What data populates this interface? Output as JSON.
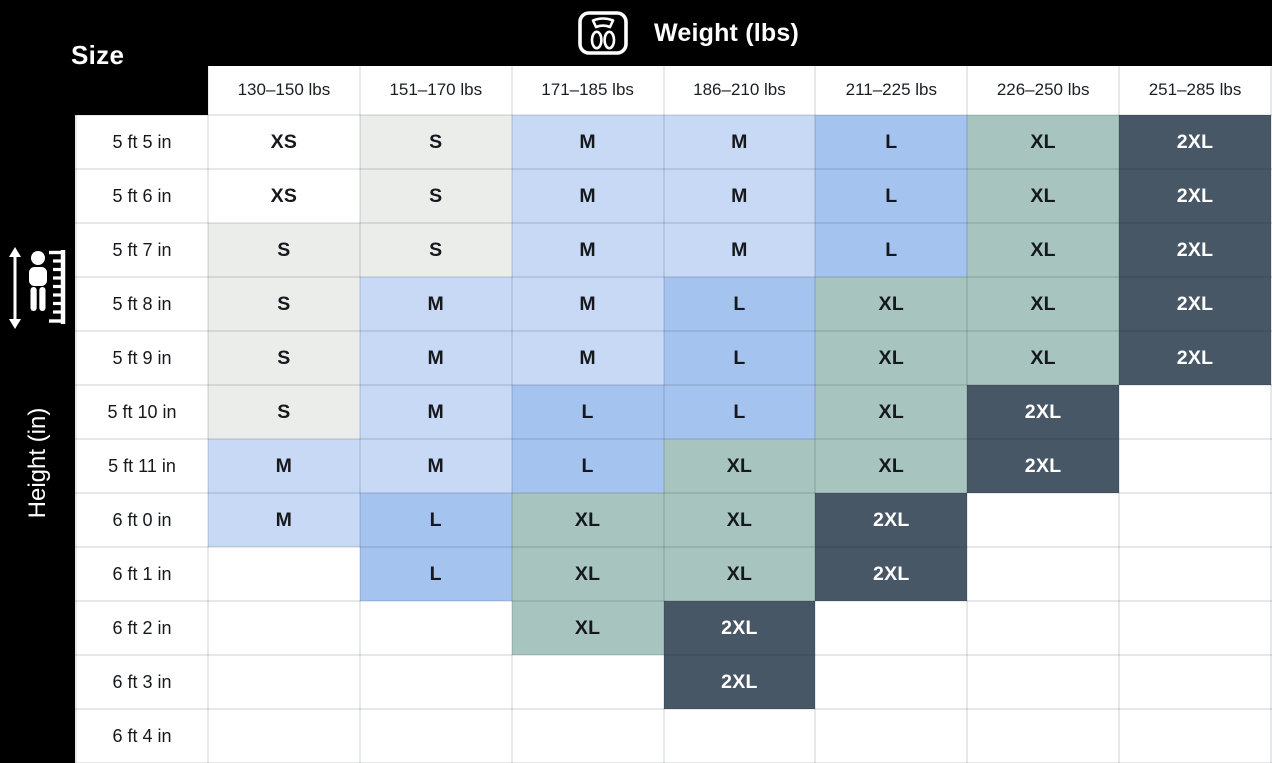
{
  "weight_header": {
    "icon": "scale-icon",
    "title": "Weight (lbs)"
  },
  "size_corner": {
    "label": "Size"
  },
  "height_header": {
    "icon": "height-measure-icon",
    "label": "Height (in)"
  },
  "colors": {
    "header_bg": "#000000",
    "sidebar_bg": "#000000",
    "header_text": "#ffffff",
    "table_text": "#15181d",
    "border": "rgba(20,25,35,0.10)",
    "size_fills": {
      "XS": {
        "bg": "#ffffff",
        "text": "#15181d"
      },
      "S": {
        "bg": "#ebedeb",
        "text": "#15181d"
      },
      "M": {
        "bg": "#c7d9f4",
        "text": "#15181d"
      },
      "L": {
        "bg": "#a5c3ef",
        "text": "#15181d"
      },
      "XL": {
        "bg": "#a7c4be",
        "text": "#15181d"
      },
      "2XL": {
        "bg": "#485766",
        "text": "#ffffff"
      }
    }
  },
  "chart_data": {
    "type": "table",
    "columns": [
      "130–150 lbs",
      "151–170 lbs",
      "171–185 lbs",
      "186–210 lbs",
      "211–225 lbs",
      "226–250 lbs",
      "251–285 lbs"
    ],
    "rows": [
      {
        "height": "5 ft 5 in",
        "sizes": [
          "XS",
          "S",
          "M",
          "M",
          "L",
          "XL",
          "2XL"
        ]
      },
      {
        "height": "5 ft 6 in",
        "sizes": [
          "XS",
          "S",
          "M",
          "M",
          "L",
          "XL",
          "2XL"
        ]
      },
      {
        "height": "5 ft 7 in",
        "sizes": [
          "S",
          "S",
          "M",
          "M",
          "L",
          "XL",
          "2XL"
        ]
      },
      {
        "height": "5 ft 8 in",
        "sizes": [
          "S",
          "M",
          "M",
          "L",
          "XL",
          "XL",
          "2XL"
        ]
      },
      {
        "height": "5 ft 9 in",
        "sizes": [
          "S",
          "M",
          "M",
          "L",
          "XL",
          "XL",
          "2XL"
        ]
      },
      {
        "height": "5 ft 10 in",
        "sizes": [
          "S",
          "M",
          "L",
          "L",
          "XL",
          "2XL",
          ""
        ]
      },
      {
        "height": "5 ft 11 in",
        "sizes": [
          "M",
          "M",
          "L",
          "XL",
          "XL",
          "2XL",
          ""
        ]
      },
      {
        "height": "6 ft 0 in",
        "sizes": [
          "M",
          "L",
          "XL",
          "XL",
          "2XL",
          "",
          ""
        ]
      },
      {
        "height": "6 ft 1 in",
        "sizes": [
          "",
          "L",
          "XL",
          "XL",
          "2XL",
          "",
          ""
        ]
      },
      {
        "height": "6 ft 2 in",
        "sizes": [
          "",
          "",
          "XL",
          "2XL",
          "",
          "",
          ""
        ]
      },
      {
        "height": "6 ft 3 in",
        "sizes": [
          "",
          "",
          "",
          "2XL",
          "",
          "",
          ""
        ]
      },
      {
        "height": "6 ft 4 in",
        "sizes": [
          "",
          "",
          "",
          "",
          "",
          "",
          ""
        ]
      }
    ]
  }
}
